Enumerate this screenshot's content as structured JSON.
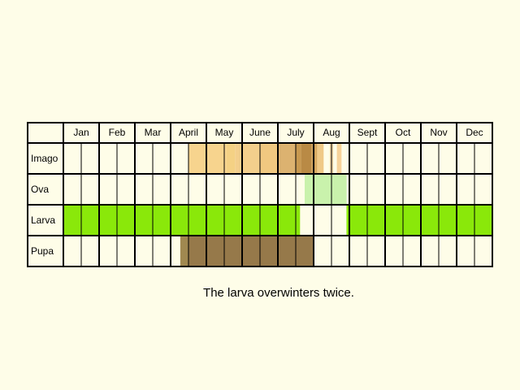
{
  "months": [
    "Jan",
    "Feb",
    "Mar",
    "April",
    "May",
    "June",
    "July",
    "Aug",
    "Sept",
    "Oct",
    "Nov",
    "Dec"
  ],
  "stages": [
    {
      "label": "Imago",
      "segments": [
        {
          "start": 3.5,
          "end": 4.55,
          "color": "#f7d48e"
        },
        {
          "start": 4.55,
          "end": 4.8,
          "color": "#f4d184"
        },
        {
          "start": 4.8,
          "end": 5.5,
          "color": "#f3cf8c"
        },
        {
          "start": 5.5,
          "end": 6.0,
          "color": "#f0c880"
        },
        {
          "start": 6.0,
          "end": 6.5,
          "color": "#dcb270"
        },
        {
          "start": 6.5,
          "end": 6.65,
          "color": "#c89950"
        },
        {
          "start": 6.65,
          "end": 6.95,
          "color": "#b98a45"
        },
        {
          "start": 6.95,
          "end": 7.1,
          "color": "#d8aa62"
        },
        {
          "start": 7.1,
          "end": 7.28,
          "color": "#efc987"
        },
        {
          "start": 7.45,
          "end": 7.55,
          "color": "#f3d9a8"
        },
        {
          "start": 7.65,
          "end": 7.78,
          "color": "#f7d39a"
        }
      ]
    },
    {
      "label": "Ova",
      "segments": [
        {
          "start": 6.75,
          "end": 7.92,
          "color": "#c9f2ac"
        }
      ]
    },
    {
      "label": "Larva",
      "segments": [
        {
          "start": 0.0,
          "end": 6.62,
          "color": "#8ae80a"
        },
        {
          "start": 7.92,
          "end": 12.0,
          "color": "#8ae80a"
        }
      ]
    },
    {
      "label": "Pupa",
      "segments": [
        {
          "start": 3.27,
          "end": 3.5,
          "color": "#a08850"
        },
        {
          "start": 3.5,
          "end": 7.0,
          "color": "#96794a"
        }
      ]
    }
  ],
  "caption": "The larva overwinters twice."
}
